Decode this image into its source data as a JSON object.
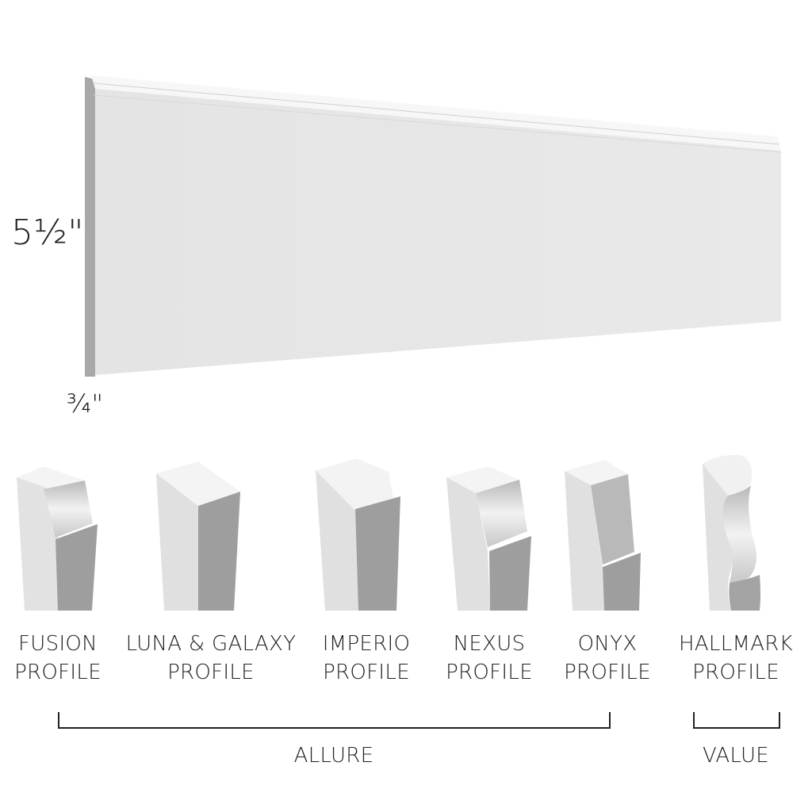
{
  "dimensions": {
    "height": "5½\"",
    "thickness": "¾\""
  },
  "profiles": [
    {
      "line1": "FUSION",
      "line2": "PROFILE"
    },
    {
      "line1": "LUNA & GALAXY",
      "line2": "PROFILE"
    },
    {
      "line1": "IMPERIO",
      "line2": "PROFILE"
    },
    {
      "line1": "NEXUS",
      "line2": "PROFILE"
    },
    {
      "line1": "ONYX",
      "line2": "PROFILE"
    },
    {
      "line1": "HALLMARK",
      "line2": "PROFILE"
    }
  ],
  "groups": {
    "allure": "ALLURE",
    "value": "VALUE"
  },
  "colors": {
    "board_face": "#e6e6e6",
    "shadow_face": "#9e9e9e",
    "text": "#222222"
  }
}
